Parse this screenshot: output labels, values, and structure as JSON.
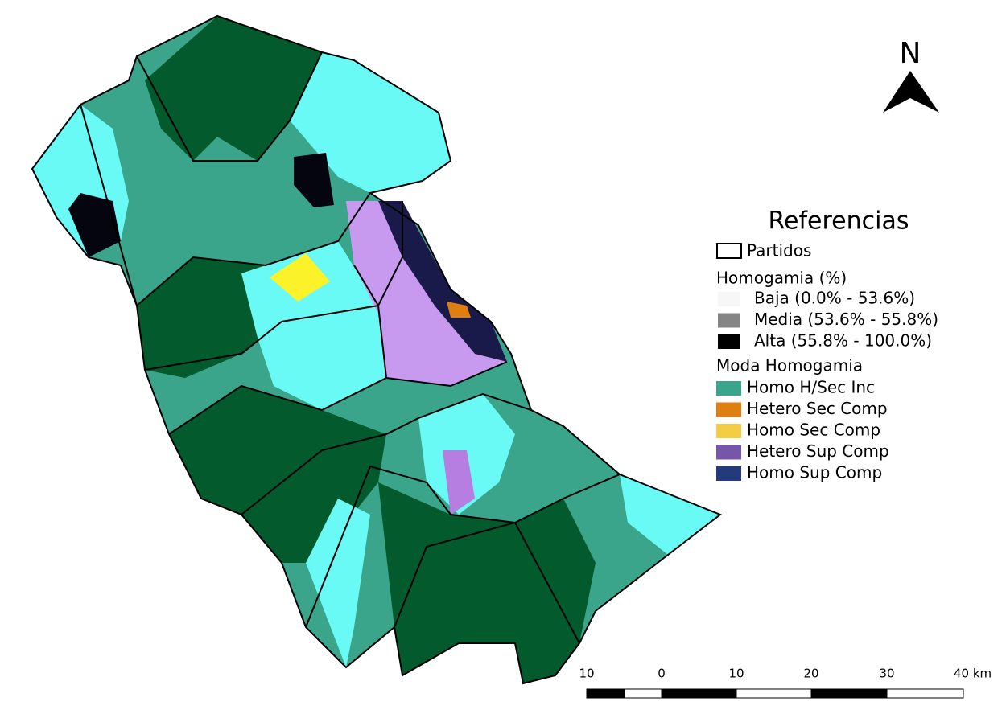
{
  "legend": {
    "title": "Referencias",
    "boundary": "Partidos",
    "homogamia_title": "Homogamia (%)",
    "homogamia_items": [
      {
        "label": "Baja (0.0% - 53.6%)",
        "color": "#f7f7f7"
      },
      {
        "label": "Media (53.6% - 55.8%)",
        "color": "#858585"
      },
      {
        "label": "Alta (55.8% - 100.0%)",
        "color": "#000000"
      }
    ],
    "moda_title": "Moda Homogamia",
    "moda_items": [
      {
        "label": "Homo H/Sec Inc",
        "color": "#3aa58b"
      },
      {
        "label": "Hetero Sec Comp",
        "color": "#de7f12"
      },
      {
        "label": "Homo Sec Comp",
        "color": "#f3cd45"
      },
      {
        "label": "Hetero Sup Comp",
        "color": "#7656a8"
      },
      {
        "label": "Homo Sup Comp",
        "color": "#243a7a"
      }
    ]
  },
  "north_arrow": "N",
  "scale_bar": [
    "10",
    "0",
    "10",
    "20",
    "30",
    "40 km"
  ]
}
